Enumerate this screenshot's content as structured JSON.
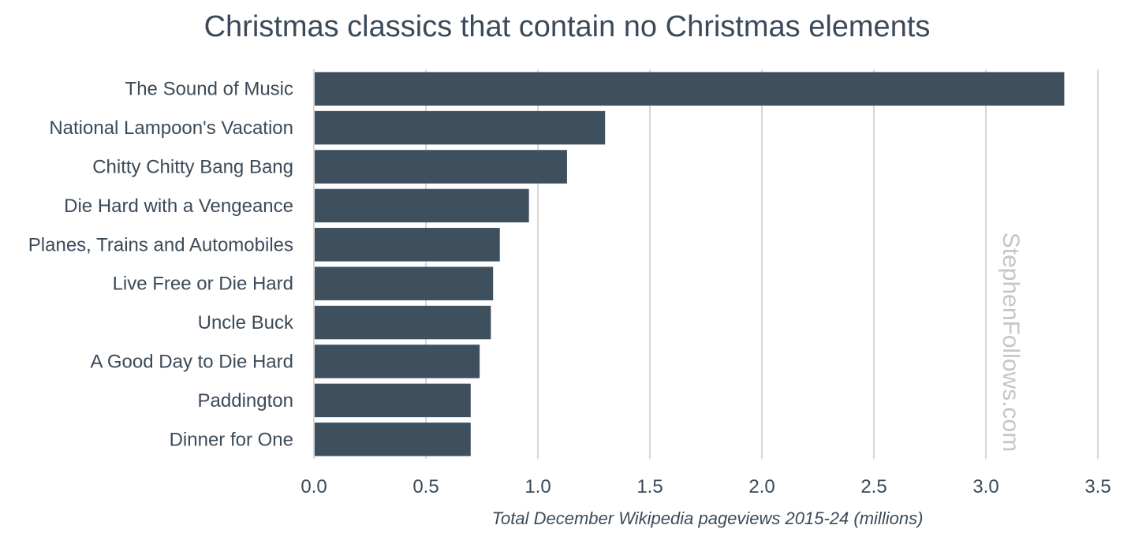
{
  "chart_data": {
    "type": "bar",
    "orientation": "horizontal",
    "title": "Christmas classics that contain no Christmas elements",
    "xlabel": "Total December Wikipedia pageviews 2015-24 (millions)",
    "ylabel": "",
    "categories": [
      "The Sound of Music",
      "National Lampoon's Vacation",
      "Chitty Chitty Bang Bang",
      "Die Hard with a Vengeance",
      "Planes, Trains and Automobiles",
      "Live Free or Die Hard",
      "Uncle Buck",
      "A Good Day to Die Hard",
      "Paddington",
      "Dinner for One"
    ],
    "values": [
      3.35,
      1.3,
      1.13,
      0.96,
      0.83,
      0.8,
      0.79,
      0.74,
      0.7,
      0.7
    ],
    "xlim": [
      0,
      3.5
    ],
    "xticks": [
      0.0,
      0.5,
      1.0,
      1.5,
      2.0,
      2.5,
      3.0,
      3.5
    ],
    "xtick_labels": [
      "0.0",
      "0.5",
      "1.0",
      "1.5",
      "2.0",
      "2.5",
      "3.0",
      "3.5"
    ],
    "grid": "vertical",
    "legend": "none",
    "bar_color": "#3e4f5e",
    "watermark": "StephenFollows.com"
  }
}
